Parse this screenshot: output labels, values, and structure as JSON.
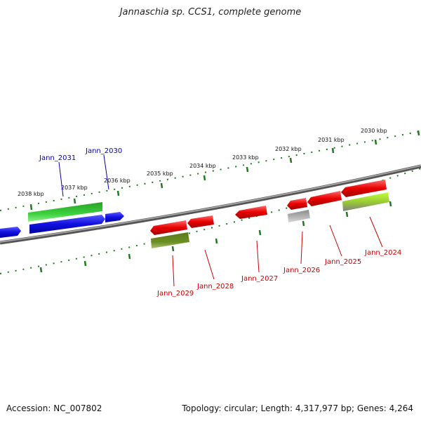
{
  "title": "Jannaschia sp. CCS1, complete genome",
  "accession_text": "Accession: NC_007802",
  "topology_text": "Topology: circular; Length: 4,317,977 bp; Genes: 4,264",
  "colors": {
    "backbone": "#7a7a7a",
    "ticks": "#1e7a1e",
    "forward_label": "#0000aa",
    "reverse_label": "#cc0000",
    "forward_gene": "#1010e0",
    "reverse_gene": "#e00000"
  },
  "kbp_labels": [
    "2038 kbp",
    "2037 kbp",
    "2036 kbp",
    "2035 kbp",
    "2034 kbp",
    "2033 kbp",
    "2032 kbp",
    "2031 kbp",
    "2030 kbp"
  ],
  "gene_labels_forward": [
    "Jann_2031",
    "Jann_2030"
  ],
  "gene_labels_reverse": [
    "Jann_2029",
    "Jann_2028",
    "Jann_2027",
    "Jann_2026",
    "Jann_2025",
    "Jann_2024"
  ]
}
